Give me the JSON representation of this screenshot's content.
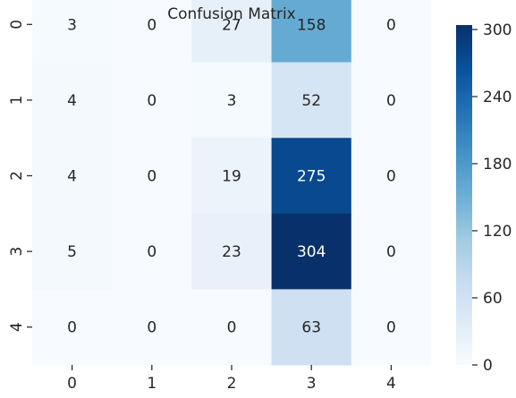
{
  "chart_data": {
    "type": "heatmap",
    "title": "Confusion Matrix",
    "xlabel": "",
    "ylabel": "",
    "x_categories": [
      "0",
      "1",
      "2",
      "3",
      "4"
    ],
    "y_categories": [
      "0",
      "1",
      "2",
      "3",
      "4"
    ],
    "values": [
      [
        3,
        0,
        27,
        158,
        0
      ],
      [
        4,
        0,
        3,
        52,
        0
      ],
      [
        4,
        0,
        19,
        275,
        0
      ],
      [
        5,
        0,
        23,
        304,
        0
      ],
      [
        0,
        0,
        0,
        63,
        0
      ]
    ],
    "colorbar": {
      "ticks": [
        "0",
        "60",
        "120",
        "180",
        "240",
        "300"
      ],
      "range": [
        0,
        304
      ],
      "colormap": "Blues"
    },
    "grid": false
  }
}
